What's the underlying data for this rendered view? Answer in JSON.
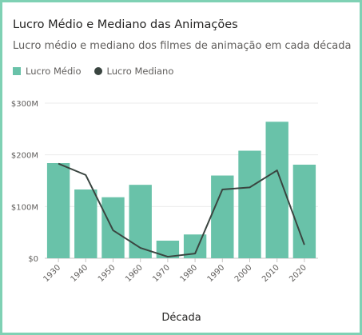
{
  "header": {
    "title": "Lucro Médio e Mediano das Animações",
    "subtitle": "Lucro médio e mediano dos filmes de animação em cada década"
  },
  "legend": {
    "average_label": "Lucro Médio",
    "median_label": "Lucro Mediano"
  },
  "colors": {
    "bar": "#69c2a9",
    "line": "#3a4540",
    "border": "#7fd1b4"
  },
  "chart_data": {
    "type": "bar",
    "title": "Lucro Médio e Mediano das Animações",
    "xlabel": "Década",
    "ylabel": "",
    "categories": [
      "1930",
      "1940",
      "1950",
      "1960",
      "1970",
      "1980",
      "1990",
      "2000",
      "2010",
      "2020"
    ],
    "ylim": [
      0,
      300
    ],
    "yticks": [
      {
        "value": 0,
        "label": "$0"
      },
      {
        "value": 100,
        "label": "$100M"
      },
      {
        "value": 200,
        "label": "$200M"
      },
      {
        "value": 300,
        "label": "$300M"
      }
    ],
    "series": [
      {
        "name": "Lucro Médio",
        "kind": "bar",
        "values": [
          184,
          133,
          118,
          142,
          34,
          46,
          160,
          208,
          264,
          181
        ]
      },
      {
        "name": "Lucro Mediano",
        "kind": "line",
        "values": [
          183,
          161,
          54,
          20,
          3,
          9,
          133,
          137,
          170,
          26
        ]
      }
    ],
    "grid": true,
    "legend_position": "top-left"
  }
}
